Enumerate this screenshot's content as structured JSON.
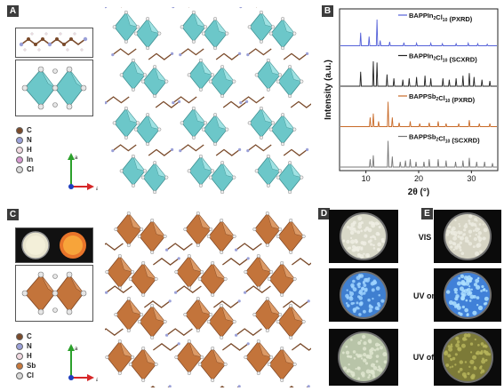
{
  "panels": {
    "A": "A",
    "B": "B",
    "C": "C",
    "D": "D",
    "E": "E"
  },
  "legend_A": [
    {
      "symbol": "C",
      "color": "#7a4a2a"
    },
    {
      "symbol": "N",
      "color": "#9aa0d8"
    },
    {
      "symbol": "H",
      "color": "#f0d8e0"
    },
    {
      "symbol": "In",
      "color": "#d69ad0"
    },
    {
      "symbol": "Cl",
      "color": "#d8d8d8"
    }
  ],
  "legend_C": [
    {
      "symbol": "C",
      "color": "#7a4a2a"
    },
    {
      "symbol": "N",
      "color": "#9aa0d8"
    },
    {
      "symbol": "H",
      "color": "#f0d8e0"
    },
    {
      "symbol": "Sb",
      "color": "#c8783c"
    },
    {
      "symbol": "Cl",
      "color": "#d8d8d8"
    }
  ],
  "axes_A": {
    "vertical": "a",
    "horizontal": "a"
  },
  "axes_C": {
    "vertical": "a",
    "horizontal": "a"
  },
  "colors": {
    "indium": "#6cc7c9",
    "antimony": "#c3743b",
    "pxrd_blue": "#5561d8",
    "pxrd_orange": "#c86a28",
    "trace_black": "#222",
    "trace_gray": "#777"
  },
  "chart_data": {
    "type": "line",
    "xlabel": "2θ (°)",
    "ylabel": "Intensity (a.u.)",
    "xlim": [
      5,
      35
    ],
    "xticks": [
      10,
      20,
      30
    ],
    "series": [
      {
        "name": "BAPPIn2Cl10 (PXRD)",
        "label_main": "BAPPIn",
        "label_sub1": "2",
        "label_mid": "Cl",
        "label_sub2": "10",
        "label_tail": " (PXRD)",
        "peaks": [
          [
            9.0,
            0.5
          ],
          [
            10.6,
            0.35
          ],
          [
            12.1,
            1.0
          ],
          [
            12.7,
            0.2
          ],
          [
            14.5,
            0.15
          ],
          [
            17.2,
            0.12
          ],
          [
            19.6,
            0.1
          ],
          [
            22.3,
            0.1
          ],
          [
            24.5,
            0.08
          ],
          [
            27.1,
            0.08
          ],
          [
            29.4,
            0.1
          ],
          [
            31.2,
            0.08
          ],
          [
            33.0,
            0.06
          ]
        ]
      },
      {
        "name": "BAPPIn2Cl10 (SCXRD)",
        "label_main": "BAPPIn",
        "label_sub1": "2",
        "label_mid": "Cl",
        "label_sub2": "10",
        "label_tail": " (SCXRD)",
        "peaks": [
          [
            9.0,
            0.55
          ],
          [
            11.4,
            0.95
          ],
          [
            12.1,
            0.9
          ],
          [
            14.0,
            0.45
          ],
          [
            15.3,
            0.3
          ],
          [
            17.0,
            0.25
          ],
          [
            18.2,
            0.3
          ],
          [
            19.6,
            0.35
          ],
          [
            21.2,
            0.4
          ],
          [
            22.3,
            0.3
          ],
          [
            24.6,
            0.3
          ],
          [
            25.8,
            0.25
          ],
          [
            27.1,
            0.3
          ],
          [
            28.4,
            0.4
          ],
          [
            29.6,
            0.5
          ],
          [
            30.5,
            0.35
          ],
          [
            32.0,
            0.25
          ],
          [
            33.5,
            0.2
          ]
        ]
      },
      {
        "name": "BAPPSb2Cl10 (PXRD)",
        "label_main": "BAPPSb",
        "label_sub1": "2",
        "label_mid": "Cl",
        "label_sub2": "10",
        "label_tail": " (PXRD)",
        "peaks": [
          [
            10.8,
            0.35
          ],
          [
            11.4,
            0.5
          ],
          [
            12.4,
            0.2
          ],
          [
            14.2,
            0.95
          ],
          [
            15.0,
            0.35
          ],
          [
            16.3,
            0.15
          ],
          [
            18.4,
            0.2
          ],
          [
            20.2,
            0.12
          ],
          [
            22.0,
            0.15
          ],
          [
            23.7,
            0.2
          ],
          [
            25.2,
            0.12
          ],
          [
            27.6,
            0.12
          ],
          [
            29.6,
            0.25
          ],
          [
            31.5,
            0.12
          ],
          [
            33.5,
            0.12
          ]
        ]
      },
      {
        "name": "BAPPSb2Cl10 (SCXRD)",
        "label_main": "BAPPSb",
        "label_sub1": "2",
        "label_mid": "Cl",
        "label_sub2": "10",
        "label_tail": " (SCXRD)",
        "peaks": [
          [
            10.8,
            0.3
          ],
          [
            11.4,
            0.45
          ],
          [
            14.2,
            1.0
          ],
          [
            15.0,
            0.4
          ],
          [
            16.5,
            0.2
          ],
          [
            17.5,
            0.25
          ],
          [
            18.4,
            0.3
          ],
          [
            19.5,
            0.2
          ],
          [
            21.0,
            0.2
          ],
          [
            22.0,
            0.3
          ],
          [
            23.7,
            0.3
          ],
          [
            25.2,
            0.25
          ],
          [
            27.0,
            0.2
          ],
          [
            28.4,
            0.25
          ],
          [
            29.6,
            0.35
          ],
          [
            31.0,
            0.2
          ],
          [
            32.5,
            0.2
          ],
          [
            34.0,
            0.15
          ]
        ]
      }
    ]
  },
  "conditions": [
    {
      "label": "VIS",
      "D": {
        "bg": "#d8d8c8",
        "grain": "#f0efe4"
      },
      "E": {
        "bg": "#d6d4c4",
        "grain": "#ecebe0"
      }
    },
    {
      "label": "UV on",
      "D": {
        "bg": "#3f7fd0",
        "grain": "#9fd4ff"
      },
      "E": {
        "bg": "#4080d8",
        "grain": "#aee0ff"
      }
    },
    {
      "label": "UV off",
      "D": {
        "bg": "#b8c4a8",
        "grain": "#dfe6d0"
      },
      "E": {
        "bg": "#7c7a38",
        "grain": "#b6b45a"
      }
    }
  ]
}
